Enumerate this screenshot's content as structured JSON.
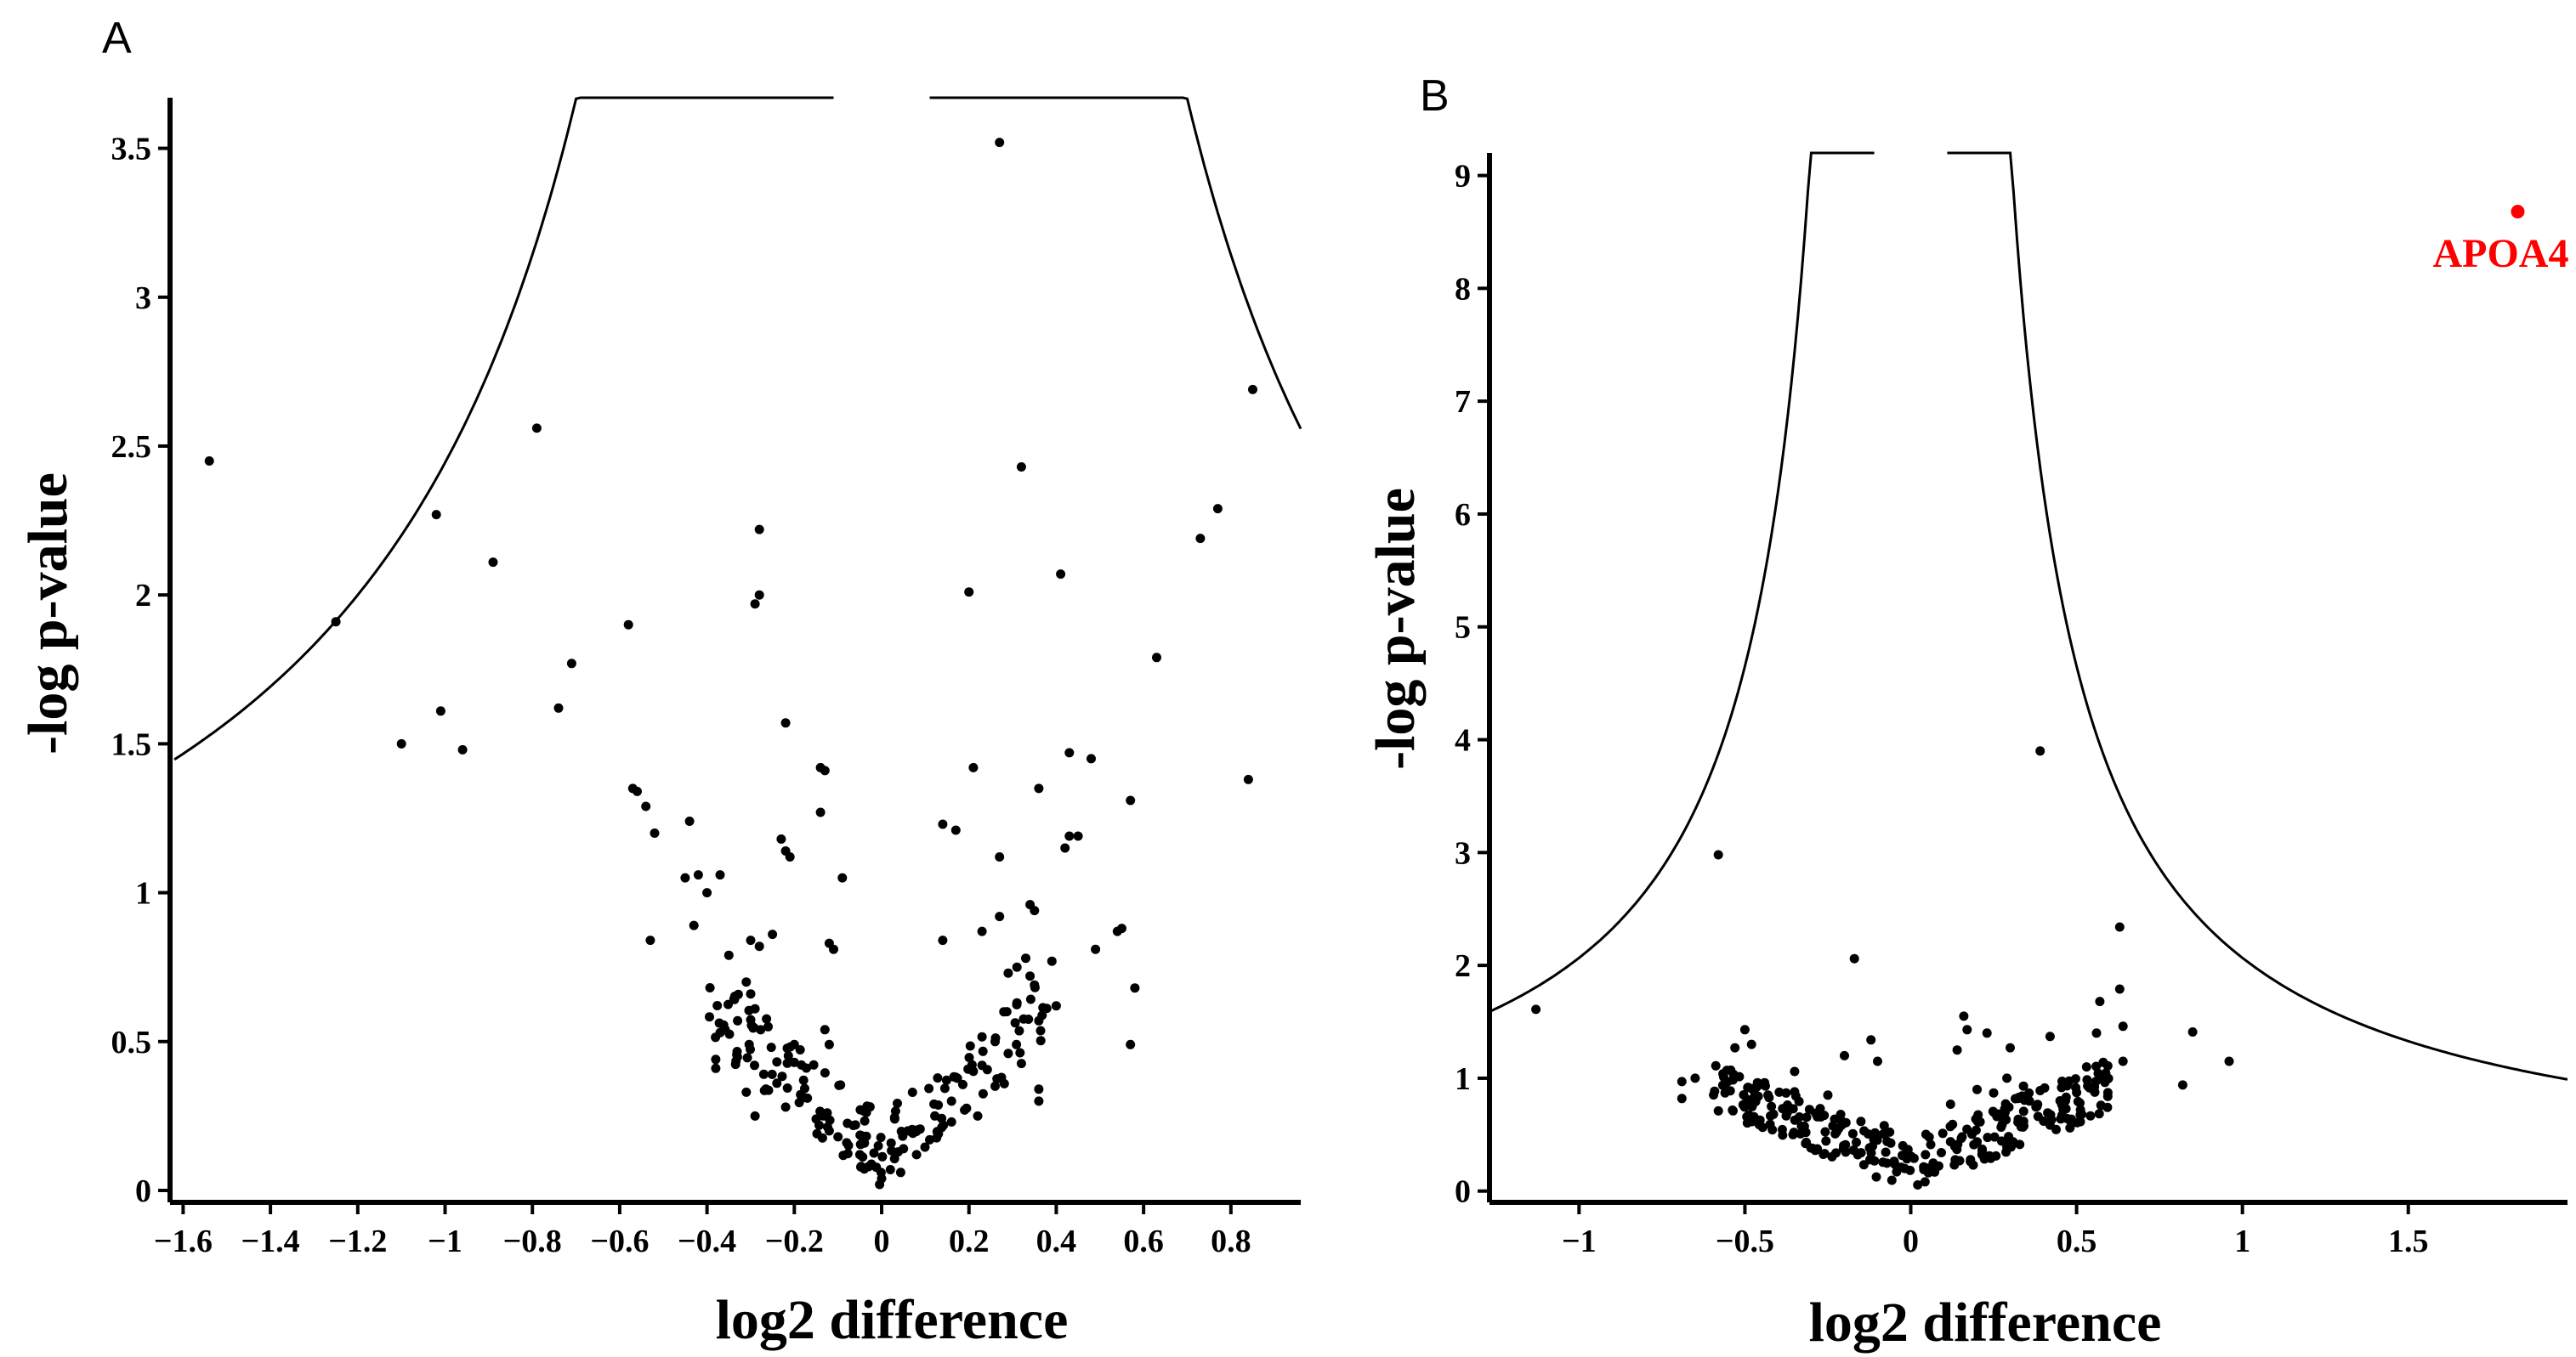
{
  "chart_data": [
    {
      "type": "scatter",
      "panel": "A",
      "title": "",
      "xlabel": "log2 difference",
      "ylabel": "-log p-value",
      "xlim": [
        -1.63,
        0.96
      ],
      "ylim": [
        -0.04,
        3.67
      ],
      "xticks": [
        -1.6,
        -1.4,
        -1.2,
        -1,
        -0.8,
        -0.6,
        -0.4,
        -0.2,
        0,
        0.2,
        0.4,
        0.6,
        0.8
      ],
      "xtick_labels": [
        "−1.6",
        "−1.4",
        "−1.2",
        "−1",
        "−0.8",
        "−0.6",
        "−0.4",
        "−0.2",
        "0",
        "0.2",
        "0.4",
        "0.6",
        "0.8"
      ],
      "yticks": [
        0,
        0.5,
        1,
        1.5,
        2,
        2.5,
        3,
        3.5
      ],
      "ytick_labels": [
        "0",
        "0.5",
        "1",
        "1.5",
        "2",
        "2.5",
        "3",
        "3.5"
      ],
      "threshold": {
        "type": "hyperbola",
        "s0": 0.1,
        "c": 2.2,
        "note": "significance cut-off curves"
      },
      "points": [
        [
          0.27,
          3.52
        ],
        [
          -1.54,
          2.45
        ],
        [
          -0.79,
          2.56
        ],
        [
          0.85,
          2.69
        ],
        [
          0.32,
          2.43
        ],
        [
          -1.02,
          2.27
        ],
        [
          -0.89,
          2.11
        ],
        [
          -0.28,
          2.22
        ],
        [
          0.77,
          2.29
        ],
        [
          0.73,
          2.19
        ],
        [
          0.41,
          2.07
        ],
        [
          -0.28,
          2.0
        ],
        [
          -0.29,
          1.97
        ],
        [
          0.2,
          2.01
        ],
        [
          -1.25,
          1.91
        ],
        [
          -0.58,
          1.9
        ],
        [
          0.63,
          1.79
        ],
        [
          -0.71,
          1.77
        ],
        [
          -1.01,
          1.61
        ],
        [
          -0.74,
          1.62
        ],
        [
          -1.1,
          1.5
        ],
        [
          -0.96,
          1.48
        ],
        [
          -0.22,
          1.57
        ],
        [
          -0.14,
          1.42
        ],
        [
          -0.13,
          1.41
        ],
        [
          0.43,
          1.47
        ],
        [
          0.48,
          1.45
        ],
        [
          0.21,
          1.42
        ],
        [
          0.84,
          1.38
        ],
        [
          -0.57,
          1.35
        ],
        [
          -0.56,
          1.34
        ],
        [
          0.36,
          1.35
        ],
        [
          0.57,
          1.31
        ],
        [
          -0.54,
          1.29
        ],
        [
          -0.14,
          1.27
        ],
        [
          -0.44,
          1.24
        ],
        [
          0.14,
          1.23
        ],
        [
          0.17,
          1.21
        ],
        [
          -0.52,
          1.2
        ],
        [
          0.43,
          1.19
        ],
        [
          0.45,
          1.19
        ],
        [
          -0.23,
          1.18
        ],
        [
          0.42,
          1.15
        ],
        [
          -0.22,
          1.14
        ],
        [
          -0.21,
          1.12
        ],
        [
          0.27,
          1.12
        ],
        [
          -0.37,
          1.06
        ],
        [
          -0.42,
          1.06
        ],
        [
          -0.45,
          1.05
        ],
        [
          -0.09,
          1.05
        ],
        [
          -0.4,
          1.0
        ],
        [
          0.34,
          0.96
        ],
        [
          0.35,
          0.94
        ],
        [
          0.27,
          0.92
        ],
        [
          0.23,
          0.87
        ],
        [
          -0.43,
          0.89
        ],
        [
          0.55,
          0.88
        ],
        [
          -0.25,
          0.86
        ],
        [
          0.54,
          0.87
        ],
        [
          -0.53,
          0.84
        ],
        [
          0.14,
          0.84
        ],
        [
          -0.12,
          0.83
        ],
        [
          -0.11,
          0.81
        ],
        [
          0.49,
          0.81
        ],
        [
          -0.3,
          0.84
        ],
        [
          -0.28,
          0.82
        ],
        [
          -0.35,
          0.79
        ],
        [
          0.33,
          0.78
        ],
        [
          0.39,
          0.77
        ],
        [
          0.31,
          0.75
        ],
        [
          0.29,
          0.73
        ],
        [
          0.34,
          0.72
        ],
        [
          0.35,
          0.69
        ],
        [
          0.58,
          0.68
        ],
        [
          -0.31,
          0.7
        ],
        [
          -0.3,
          0.66
        ],
        [
          -0.29,
          0.61
        ],
        [
          0.4,
          0.62
        ],
        [
          -0.33,
          0.57
        ],
        [
          -0.26,
          0.55
        ],
        [
          -0.37,
          0.53
        ],
        [
          0.28,
          0.6
        ],
        [
          0.31,
          0.63
        ],
        [
          0.36,
          0.57
        ],
        [
          -0.13,
          0.54
        ],
        [
          -0.12,
          0.49
        ],
        [
          0.57,
          0.49
        ],
        [
          -0.2,
          0.49
        ],
        [
          -0.38,
          0.44
        ],
        [
          -0.38,
          0.41
        ],
        [
          0.26,
          0.5
        ],
        [
          0.29,
          0.46
        ],
        [
          0.17,
          0.38
        ],
        [
          0.36,
          0.34
        ],
        [
          -0.29,
          0.25
        ],
        [
          0.16,
          0.3
        ],
        [
          0.12,
          0.29
        ],
        [
          -0.31,
          0.33
        ],
        [
          0.36,
          0.3
        ],
        [
          0.03,
          0.24
        ],
        [
          -0.17,
          0.31
        ],
        [
          -0.06,
          0.22
        ],
        [
          0.06,
          0.2
        ],
        [
          0.22,
          0.25
        ],
        [
          -0.22,
          0.28
        ],
        [
          -0.15,
          0.24
        ],
        [
          -0.12,
          0.2
        ],
        [
          0.13,
          0.19
        ],
        [
          0.11,
          0.17
        ],
        [
          -0.08,
          0.16
        ],
        [
          0.05,
          0.14
        ],
        [
          -0.05,
          0.12
        ],
        [
          0.08,
          0.12
        ],
        [
          -0.03,
          0.08
        ],
        [
          0.02,
          0.07
        ],
        [
          0.0,
          0.04
        ],
        [
          -0.1,
          0.18
        ],
        [
          0.16,
          0.23
        ],
        [
          0.19,
          0.27
        ],
        [
          -0.24,
          0.36
        ],
        [
          0.26,
          0.35
        ],
        [
          -0.27,
          0.39
        ],
        [
          0.23,
          0.42
        ],
        [
          0.21,
          0.4
        ],
        [
          -0.2,
          0.43
        ]
      ],
      "note": "~240 dots in panel A; the dense V-shaped cluster near x=0 is listed explicitly above and augmented by a deterministic fill of additional points below the 0.6 level"
    },
    {
      "type": "scatter",
      "panel": "B",
      "title": "",
      "xlabel": "log2 difference",
      "ylabel": "-log p-value",
      "xlim": [
        -1.27,
        1.98
      ],
      "ylim": [
        -0.1,
        9.2
      ],
      "xticks": [
        -1,
        -0.5,
        0,
        0.5,
        1,
        1.5
      ],
      "xtick_labels": [
        "−1",
        "−0.5",
        "0",
        "0.5",
        "1",
        "1.5"
      ],
      "yticks": [
        0,
        1,
        2,
        3,
        4,
        5,
        6,
        7,
        8,
        9
      ],
      "ytick_labels": [
        "0",
        "1",
        "2",
        "3",
        "4",
        "5",
        "6",
        "7",
        "8",
        "9"
      ],
      "threshold": {
        "type": "hyperbola",
        "s0": 0.1,
        "c": 1.86,
        "note": "significance cut-off curves"
      },
      "highlight": {
        "label": "APOA4",
        "x": 1.83,
        "y": 8.68,
        "color": "#ff0000"
      },
      "points": [
        [
          0.39,
          3.9
        ],
        [
          -0.58,
          2.98
        ],
        [
          0.63,
          2.34
        ],
        [
          -0.17,
          2.06
        ],
        [
          0.63,
          1.79
        ],
        [
          0.57,
          1.68
        ],
        [
          -1.13,
          1.61
        ],
        [
          0.16,
          1.55
        ],
        [
          0.64,
          1.46
        ],
        [
          -0.5,
          1.43
        ],
        [
          0.85,
          1.41
        ],
        [
          0.56,
          1.4
        ],
        [
          0.17,
          1.43
        ],
        [
          0.23,
          1.4
        ],
        [
          0.42,
          1.37
        ],
        [
          -0.12,
          1.34
        ],
        [
          -0.48,
          1.3
        ],
        [
          -0.53,
          1.27
        ],
        [
          0.96,
          1.15
        ],
        [
          0.64,
          1.15
        ],
        [
          0.53,
          1.1
        ],
        [
          -0.65,
          1.0
        ],
        [
          -0.69,
          0.97
        ],
        [
          0.82,
          0.94
        ],
        [
          -0.2,
          1.2
        ],
        [
          -0.1,
          1.15
        ],
        [
          0.14,
          1.25
        ],
        [
          0.3,
          1.27
        ],
        [
          -0.35,
          1.06
        ],
        [
          0.29,
          1.0
        ],
        [
          0.34,
          0.93
        ],
        [
          0.39,
          0.89
        ],
        [
          0.45,
          0.8
        ],
        [
          0.51,
          0.78
        ],
        [
          -0.69,
          0.82
        ],
        [
          -0.42,
          0.75
        ],
        [
          -0.58,
          0.71
        ],
        [
          -0.35,
          0.88
        ],
        [
          0.25,
          0.87
        ],
        [
          0.2,
          0.9
        ],
        [
          -0.25,
          0.85
        ],
        [
          0.12,
          0.77
        ],
        [
          -0.08,
          0.58
        ],
        [
          0.48,
          0.56
        ],
        [
          0.25,
          0.7
        ]
      ],
      "note": "~330 dots in panel B; dense cluster near x=0 listed explicitly above and augmented by a deterministic fill of additional points below the 1.0 level"
    }
  ]
}
